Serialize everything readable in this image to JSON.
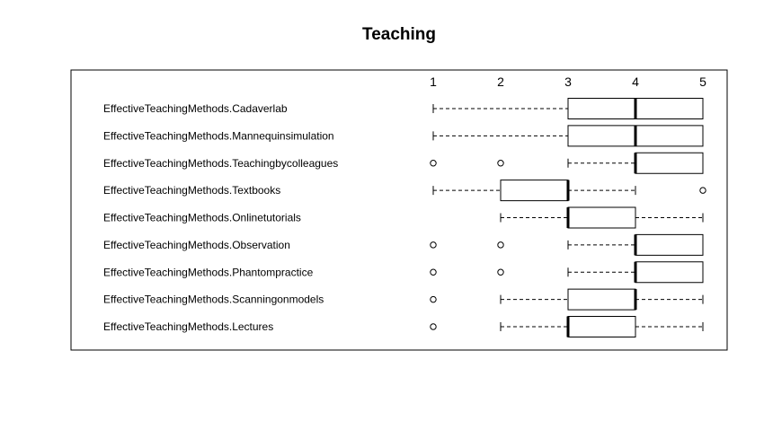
{
  "chart_data": {
    "type": "boxplot",
    "orientation": "horizontal",
    "title": "Teaching",
    "xlabel": "",
    "ylabel": "",
    "xlim": [
      1,
      5
    ],
    "x_ticks": [
      "1",
      "2",
      "3",
      "4",
      "5"
    ],
    "x_axis_position": "top",
    "grid": false,
    "categories": [
      "EffectiveTeachingMethods.Cadaverlab",
      "EffectiveTeachingMethods.Mannequinsimulation",
      "EffectiveTeachingMethods.Teachingbycolleagues",
      "EffectiveTeachingMethods.Textbooks",
      "EffectiveTeachingMethods.Onlinetutorials",
      "EffectiveTeachingMethods.Observation",
      "EffectiveTeachingMethods.Phantompractice",
      "EffectiveTeachingMethods.Scanningonmodels",
      "EffectiveTeachingMethods.Lectures"
    ],
    "boxes": [
      {
        "whisker_low": 1,
        "q1": 3,
        "median": 4,
        "q3": 5,
        "whisker_high": 5,
        "outliers": []
      },
      {
        "whisker_low": 1,
        "q1": 3,
        "median": 4,
        "q3": 5,
        "whisker_high": 5,
        "outliers": []
      },
      {
        "whisker_low": 3,
        "q1": 4,
        "median": 4,
        "q3": 5,
        "whisker_high": 5,
        "outliers": [
          1,
          2
        ]
      },
      {
        "whisker_low": 1,
        "q1": 2,
        "median": 3,
        "q3": 3,
        "whisker_high": 4,
        "outliers": [
          5
        ]
      },
      {
        "whisker_low": 2,
        "q1": 3,
        "median": 3,
        "q3": 4,
        "whisker_high": 5,
        "outliers": []
      },
      {
        "whisker_low": 3,
        "q1": 4,
        "median": 4,
        "q3": 5,
        "whisker_high": 5,
        "outliers": [
          1,
          2
        ]
      },
      {
        "whisker_low": 3,
        "q1": 4,
        "median": 4,
        "q3": 5,
        "whisker_high": 5,
        "outliers": [
          1,
          2
        ]
      },
      {
        "whisker_low": 2,
        "q1": 3,
        "median": 4,
        "q3": 4,
        "whisker_high": 5,
        "outliers": [
          1
        ]
      },
      {
        "whisker_low": 2,
        "q1": 3,
        "median": 3,
        "q3": 4,
        "whisker_high": 5,
        "outliers": [
          1
        ]
      }
    ]
  }
}
